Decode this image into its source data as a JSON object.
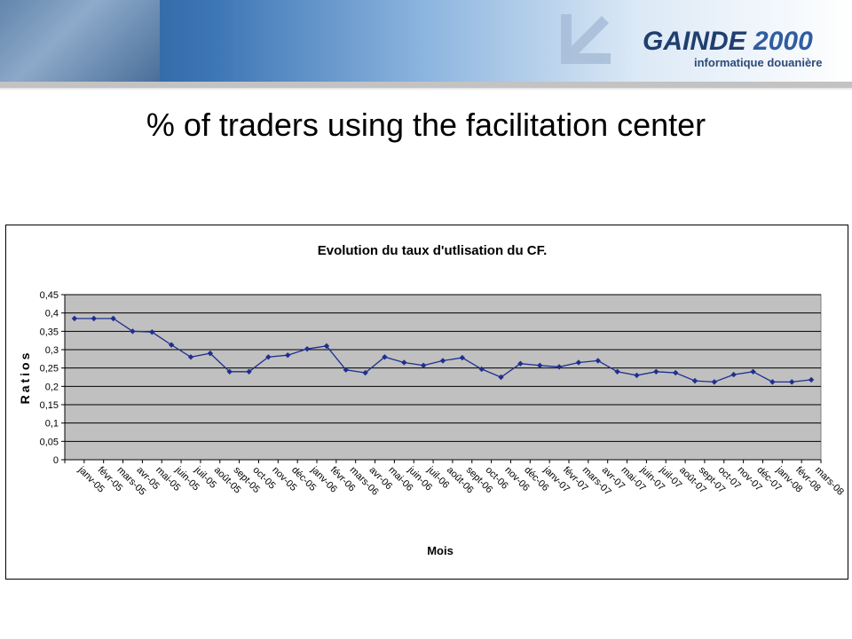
{
  "header": {
    "logo_main": "GAINDE",
    "logo_number": "2000",
    "logo_subtitle": "informatique douanière"
  },
  "slide": {
    "title": "% of traders using the facilitation center"
  },
  "colors": {
    "series": "#1f2f8f",
    "plot_background": "#c0c0c0",
    "title_text": "#000000"
  },
  "chart_data": {
    "type": "line",
    "title": "Evolution du taux d'utlisation du CF.",
    "xlabel": "Mois",
    "ylabel": "Ratios",
    "ylim": [
      0,
      0.45
    ],
    "yticks": [
      "0",
      "0,05",
      "0,1",
      "0,15",
      "0,2",
      "0,25",
      "0,3",
      "0,35",
      "0,4",
      "0,45"
    ],
    "grid": true,
    "legend": "none",
    "categories": [
      "janv-05",
      "févr-05",
      "mars-05",
      "avr-05",
      "mai-05",
      "juin-05",
      "juil-05",
      "août-05",
      "sept-05",
      "oct-05",
      "nov-05",
      "déc-05",
      "janv-06",
      "févr-06",
      "mars-06",
      "avr-06",
      "mai-06",
      "juin-06",
      "juil-06",
      "août-06",
      "sept-06",
      "oct-06",
      "nov-06",
      "déc-06",
      "janv-07",
      "févr-07",
      "mars-07",
      "avr-07",
      "mai-07",
      "juin-07",
      "juil-07",
      "août-07",
      "sept-07",
      "oct-07",
      "nov-07",
      "déc-07",
      "janv-08",
      "févr-08",
      "mars-08"
    ],
    "series": [
      {
        "values": [
          0.385,
          0.385,
          0.385,
          0.35,
          0.348,
          0.313,
          0.28,
          0.29,
          0.24,
          0.24,
          0.28,
          0.285,
          0.302,
          0.31,
          0.245,
          0.237,
          0.28,
          0.265,
          0.257,
          0.27,
          0.278,
          0.247,
          0.225,
          0.262,
          0.257,
          0.253,
          0.265,
          0.27,
          0.24,
          0.23,
          0.24,
          0.237,
          0.215,
          0.212,
          0.232,
          0.24,
          0.212,
          0.212,
          0.218
        ]
      }
    ]
  }
}
